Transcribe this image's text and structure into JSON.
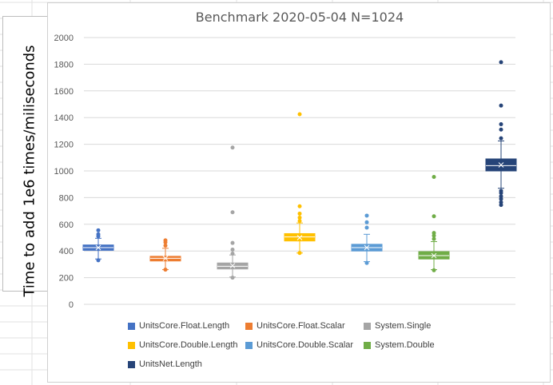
{
  "chart_data": {
    "type": "box",
    "title": "Benchmark 2020-05-04 N=1024",
    "ylabel": "Time to add 1e6 times/miliseconds",
    "ylim": [
      0,
      2000
    ],
    "yticks": [
      0,
      200,
      400,
      600,
      800,
      1000,
      1200,
      1400,
      1600,
      1800,
      2000
    ],
    "grid": true,
    "legend_position": "bottom",
    "series": [
      {
        "name": "UnitsCore.Float.Length",
        "color": "#4472C4",
        "whisker_low": 340,
        "q1": 405,
        "median": 425,
        "mean": 425,
        "q3": 445,
        "whisker_high": 495,
        "outliers": [
          330,
          510,
          525,
          555
        ]
      },
      {
        "name": "UnitsCore.Float.Scalar",
        "color": "#ED7D31",
        "whisker_low": 260,
        "q1": 325,
        "median": 345,
        "mean": 345,
        "q3": 360,
        "whisker_high": 420,
        "outliers": [
          260,
          440,
          465,
          480
        ]
      },
      {
        "name": "System.Single",
        "color": "#A5A5A5",
        "whisker_low": 205,
        "q1": 265,
        "median": 285,
        "mean": 290,
        "q3": 310,
        "whisker_high": 370,
        "outliers": [
          200,
          380,
          410,
          460,
          690,
          1175
        ]
      },
      {
        "name": "UnitsCore.Double.Length",
        "color": "#FFC000",
        "whisker_low": 385,
        "q1": 475,
        "median": 505,
        "mean": 500,
        "q3": 530,
        "whisker_high": 610,
        "outliers": [
          385,
          625,
          650,
          680,
          735,
          1425
        ]
      },
      {
        "name": "UnitsCore.Double.Scalar",
        "color": "#5B9BD5",
        "whisker_low": 320,
        "q1": 400,
        "median": 425,
        "mean": 425,
        "q3": 450,
        "whisker_high": 525,
        "outliers": [
          310,
          575,
          615,
          665
        ]
      },
      {
        "name": "System.Double",
        "color": "#70AD47",
        "whisker_low": 260,
        "q1": 340,
        "median": 365,
        "mean": 365,
        "q3": 395,
        "whisker_high": 470,
        "outliers": [
          255,
          490,
          515,
          535,
          660,
          955
        ]
      },
      {
        "name": "UnitsNet.Length",
        "color": "#264478",
        "whisker_low": 870,
        "q1": 1000,
        "median": 1040,
        "mean": 1045,
        "q3": 1090,
        "whisker_high": 1225,
        "outliers": [
          745,
          765,
          790,
          810,
          835,
          850,
          1245,
          1310,
          1350,
          1490,
          1815
        ]
      }
    ]
  }
}
